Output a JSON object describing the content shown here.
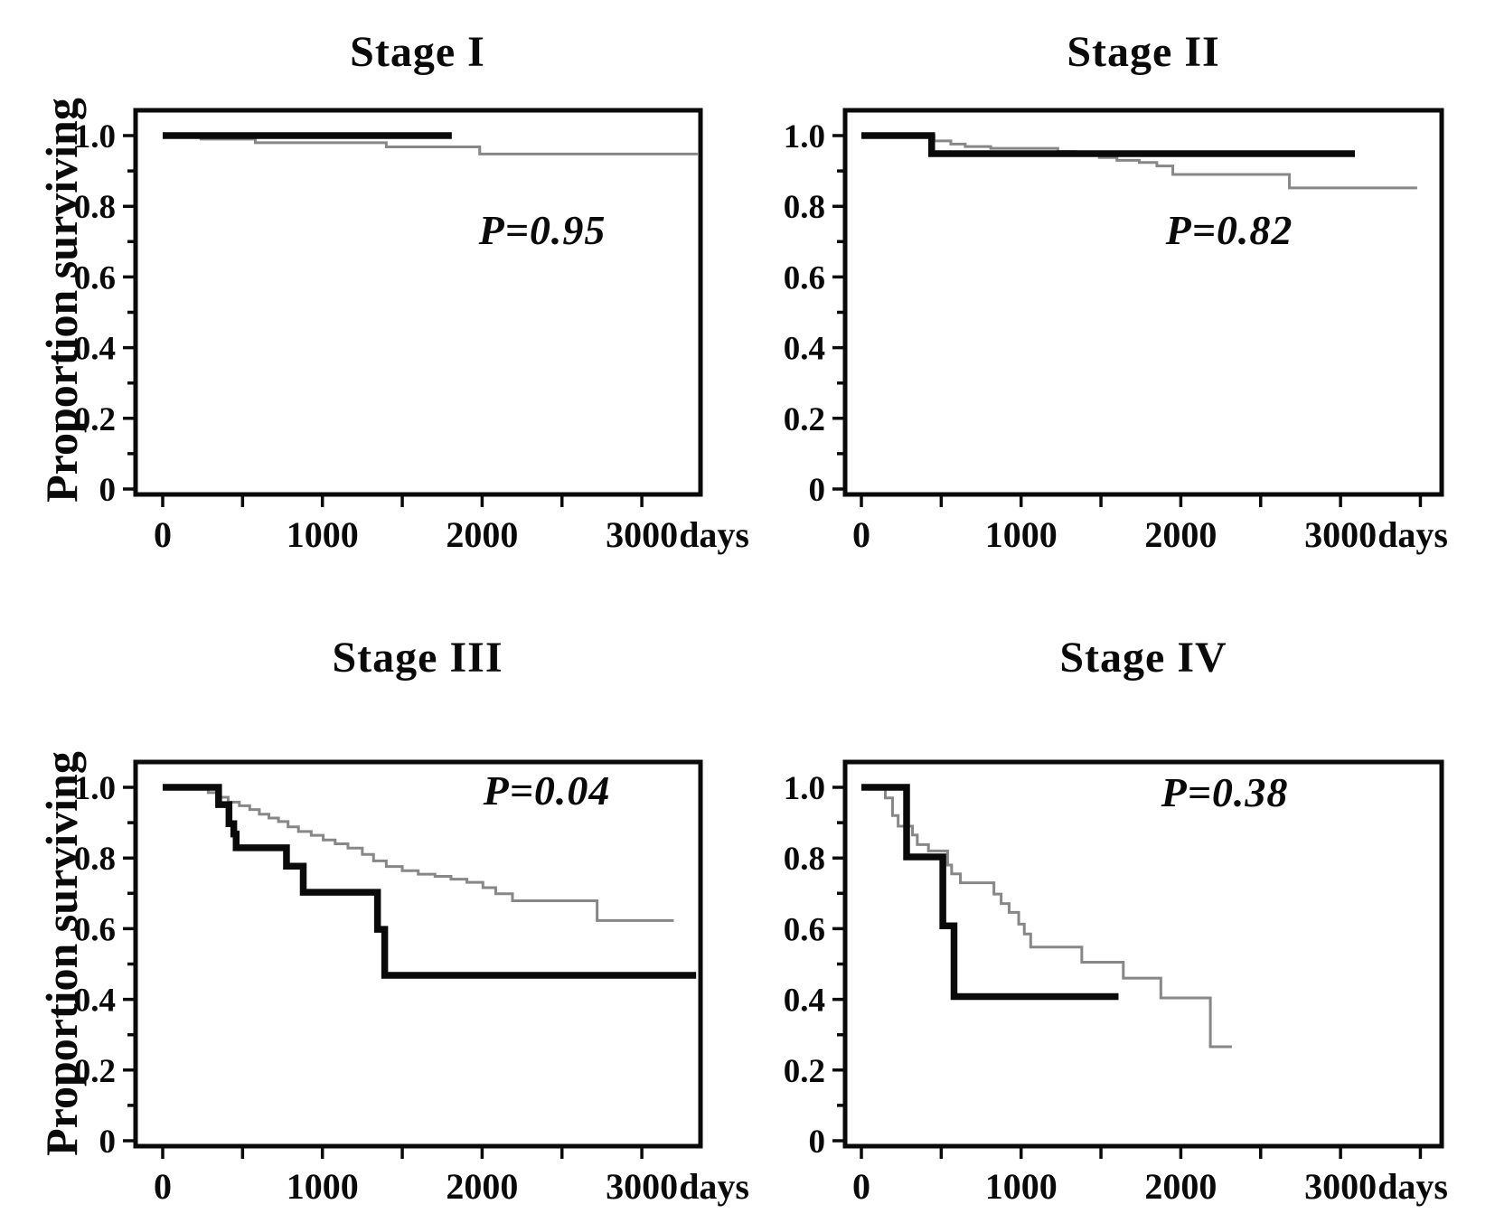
{
  "figure": {
    "y_axis_label": "Proportion surviving",
    "x_unit_label": "days",
    "curve_colors": {
      "thick_black_group": "#0a0a0a",
      "thin_gray_group": "#878787"
    }
  },
  "axes": {
    "x_tick_labels": [
      {
        "day": 0,
        "label": "0"
      },
      {
        "day": 1000,
        "label": "1000"
      },
      {
        "day": 2000,
        "label": "2000"
      },
      {
        "day": 3000,
        "label": "3000"
      }
    ],
    "x_all_tick_days": [
      0,
      500,
      1000,
      1500,
      2000,
      2500,
      3000,
      3500
    ],
    "y_tick_labels": [
      {
        "value": 1.0,
        "label": "1.0"
      },
      {
        "value": 0.8,
        "label": "0.8"
      },
      {
        "value": 0.6,
        "label": "0.6"
      },
      {
        "value": 0.4,
        "label": "0.4"
      },
      {
        "value": 0.2,
        "label": "0.2"
      },
      {
        "value": 0.0,
        "label": "0"
      }
    ],
    "y_minor_tick_values": [
      0.9,
      0.7,
      0.5,
      0.3,
      0.1
    ],
    "x_range_days": [
      0,
      3600
    ],
    "y_range": [
      0,
      1.05
    ],
    "grid": "off",
    "legend": "none"
  },
  "chart_data": [
    {
      "type": "line",
      "subtype": "kaplan-meier-step",
      "title": "Stage I",
      "annotation": "P=0.95",
      "xlabel_unit": "days",
      "ylabel": "Proportion surviving",
      "series": [
        {
          "name": "thick-black-group",
          "color": "#0a0a0a",
          "stroke_width": 7.5,
          "steps": [
            [
              0,
              1.0
            ],
            [
              1810,
              1.0
            ]
          ]
        },
        {
          "name": "thin-gray-group",
          "color": "#878787",
          "stroke_width": 3,
          "steps": [
            [
              0,
              1.0
            ],
            [
              240,
              0.99
            ],
            [
              580,
              0.98
            ],
            [
              1400,
              0.968
            ],
            [
              1985,
              0.948
            ],
            [
              3350,
              0.948
            ]
          ]
        }
      ]
    },
    {
      "type": "line",
      "subtype": "kaplan-meier-step",
      "title": "Stage II",
      "annotation": "P=0.82",
      "xlabel_unit": "days",
      "ylabel": "Proportion surviving",
      "series": [
        {
          "name": "thick-black-group",
          "color": "#0a0a0a",
          "stroke_width": 7.5,
          "steps": [
            [
              0,
              1.0
            ],
            [
              440,
              0.949
            ],
            [
              3090,
              0.949
            ]
          ]
        },
        {
          "name": "thin-gray-group",
          "color": "#878787",
          "stroke_width": 3,
          "steps": [
            [
              0,
              1.0
            ],
            [
              455,
              0.985
            ],
            [
              560,
              0.976
            ],
            [
              650,
              0.969
            ],
            [
              810,
              0.964
            ],
            [
              1230,
              0.955
            ],
            [
              1340,
              0.944
            ],
            [
              1490,
              0.938
            ],
            [
              1600,
              0.93
            ],
            [
              1740,
              0.924
            ],
            [
              1850,
              0.914
            ],
            [
              1950,
              0.89
            ],
            [
              2680,
              0.852
            ],
            [
              3480,
              0.852
            ]
          ]
        }
      ]
    },
    {
      "type": "line",
      "subtype": "kaplan-meier-step",
      "title": "Stage III",
      "annotation": "P=0.04",
      "xlabel_unit": "days",
      "ylabel": "Proportion surviving",
      "series": [
        {
          "name": "thick-black-group",
          "color": "#0a0a0a",
          "stroke_width": 7.5,
          "steps": [
            [
              0,
              1.0
            ],
            [
              350,
              0.951
            ],
            [
              415,
              0.897
            ],
            [
              445,
              0.868
            ],
            [
              460,
              0.829
            ],
            [
              775,
              0.777
            ],
            [
              880,
              0.703
            ],
            [
              1345,
              0.598
            ],
            [
              1390,
              0.468
            ],
            [
              3340,
              0.468
            ]
          ]
        },
        {
          "name": "thin-gray-group",
          "color": "#878787",
          "stroke_width": 3,
          "steps": [
            [
              0,
              1.0
            ],
            [
              285,
              0.985
            ],
            [
              350,
              0.972
            ],
            [
              410,
              0.958
            ],
            [
              480,
              0.948
            ],
            [
              545,
              0.937
            ],
            [
              605,
              0.924
            ],
            [
              665,
              0.913
            ],
            [
              725,
              0.903
            ],
            [
              785,
              0.888
            ],
            [
              850,
              0.875
            ],
            [
              930,
              0.864
            ],
            [
              1005,
              0.851
            ],
            [
              1080,
              0.84
            ],
            [
              1160,
              0.828
            ],
            [
              1250,
              0.81
            ],
            [
              1320,
              0.792
            ],
            [
              1400,
              0.776
            ],
            [
              1500,
              0.764
            ],
            [
              1600,
              0.754
            ],
            [
              1705,
              0.748
            ],
            [
              1805,
              0.74
            ],
            [
              1905,
              0.731
            ],
            [
              2005,
              0.716
            ],
            [
              2085,
              0.699
            ],
            [
              2190,
              0.679
            ],
            [
              2720,
              0.623
            ],
            [
              3200,
              0.623
            ]
          ]
        }
      ]
    },
    {
      "type": "line",
      "subtype": "kaplan-meier-step",
      "title": "Stage IV",
      "annotation": "P=0.38",
      "xlabel_unit": "days",
      "ylabel": "Proportion surviving",
      "series": [
        {
          "name": "thick-black-group",
          "color": "#0a0a0a",
          "stroke_width": 7.5,
          "steps": [
            [
              0,
              1.0
            ],
            [
              283,
              0.803
            ],
            [
              510,
              0.608
            ],
            [
              580,
              0.408
            ],
            [
              1610,
              0.408
            ]
          ]
        },
        {
          "name": "thin-gray-group",
          "color": "#878787",
          "stroke_width": 3,
          "steps": [
            [
              0,
              1.0
            ],
            [
              150,
              0.97
            ],
            [
              195,
              0.92
            ],
            [
              230,
              0.89
            ],
            [
              320,
              0.865
            ],
            [
              350,
              0.838
            ],
            [
              420,
              0.82
            ],
            [
              540,
              0.78
            ],
            [
              565,
              0.755
            ],
            [
              620,
              0.73
            ],
            [
              830,
              0.698
            ],
            [
              875,
              0.671
            ],
            [
              925,
              0.646
            ],
            [
              985,
              0.613
            ],
            [
              1020,
              0.585
            ],
            [
              1060,
              0.548
            ],
            [
              1380,
              0.505
            ],
            [
              1640,
              0.46
            ],
            [
              1875,
              0.404
            ],
            [
              2185,
              0.266
            ],
            [
              2320,
              0.266
            ]
          ]
        }
      ]
    }
  ]
}
